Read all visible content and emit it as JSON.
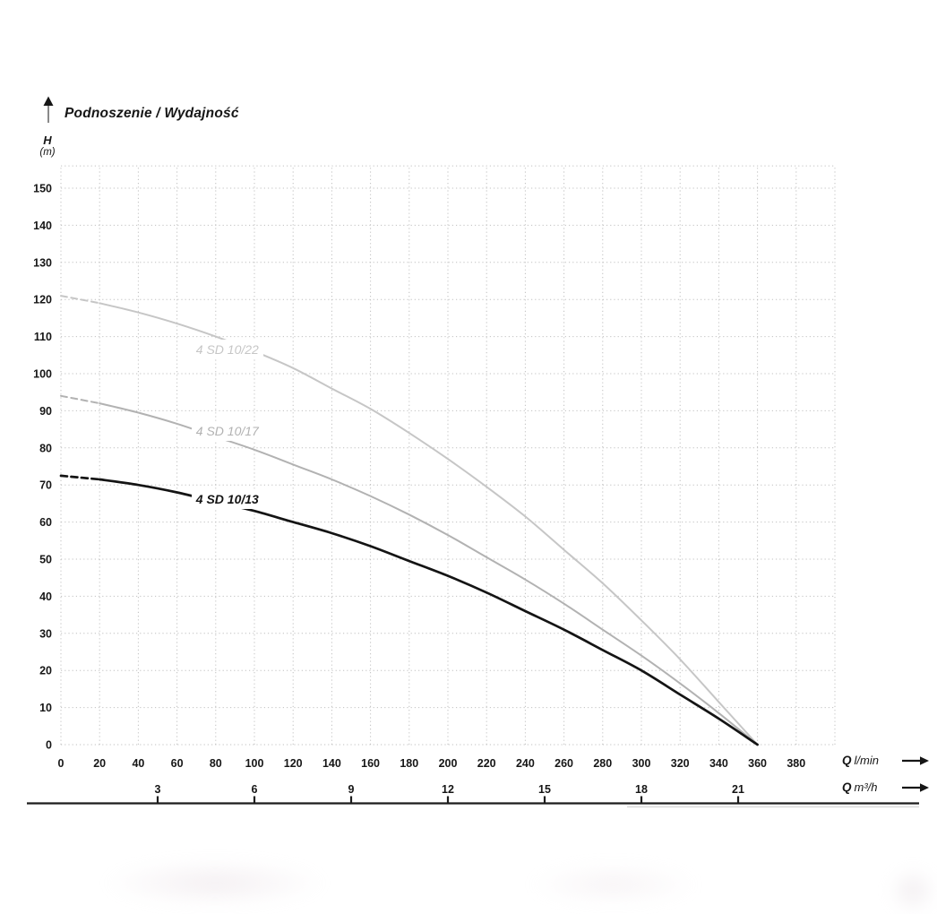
{
  "title": "Podnoszenie / Wydajność",
  "y_axis": {
    "symbol": "H",
    "unit": "(m)"
  },
  "x_axis_primary": {
    "symbol": "Q",
    "unit": "l/min"
  },
  "x_axis_secondary": {
    "symbol": "Q",
    "unit": "m³/h"
  },
  "chart_data": {
    "type": "line",
    "title": "Podnoszenie / Wydajność",
    "ylabel": "H (m)",
    "xlabel_primary": "Q l/min",
    "xlabel_secondary": "Q m³/h",
    "grid": "dotted",
    "legend_position": "on-curve-labels",
    "xlim_lmin": [
      0,
      400
    ],
    "ylim_m": [
      0,
      156
    ],
    "y_ticks_m": [
      0,
      10,
      20,
      30,
      40,
      50,
      60,
      70,
      80,
      90,
      100,
      110,
      120,
      130,
      140,
      150
    ],
    "x_ticks_lmin": [
      0,
      20,
      40,
      60,
      80,
      100,
      120,
      140,
      160,
      180,
      200,
      220,
      240,
      260,
      280,
      300,
      320,
      340,
      360,
      380
    ],
    "x_ticks_m3h": [
      3,
      6,
      9,
      12,
      15,
      18,
      21
    ],
    "lmin_per_m3h": 16.667,
    "series": [
      {
        "name": "4 SD 10/22",
        "color": "#c6c6c6",
        "dashed_until_lmin": 20,
        "points_lmin_m": [
          [
            0,
            121
          ],
          [
            20,
            119
          ],
          [
            40,
            116.5
          ],
          [
            60,
            113.5
          ],
          [
            80,
            110
          ],
          [
            100,
            106
          ],
          [
            120,
            101.5
          ],
          [
            140,
            96
          ],
          [
            160,
            90.5
          ],
          [
            180,
            84
          ],
          [
            200,
            77
          ],
          [
            220,
            69.5
          ],
          [
            240,
            61.5
          ],
          [
            260,
            52.5
          ],
          [
            280,
            43.5
          ],
          [
            300,
            33.5
          ],
          [
            320,
            23
          ],
          [
            340,
            11.5
          ],
          [
            360,
            0
          ]
        ],
        "label": {
          "text": "4 SD 10/22",
          "q_lmin": 67.5,
          "h_m": 106.5
        }
      },
      {
        "name": "4 SD 10/17",
        "color": "#b2b2b2",
        "dashed_until_lmin": 20,
        "points_lmin_m": [
          [
            0,
            94
          ],
          [
            20,
            92
          ],
          [
            40,
            89.5
          ],
          [
            60,
            86.5
          ],
          [
            80,
            83
          ],
          [
            100,
            79.5
          ],
          [
            120,
            75.5
          ],
          [
            140,
            71.5
          ],
          [
            160,
            67
          ],
          [
            180,
            62
          ],
          [
            200,
            56.5
          ],
          [
            220,
            50.5
          ],
          [
            240,
            44.5
          ],
          [
            260,
            38
          ],
          [
            280,
            31
          ],
          [
            300,
            24
          ],
          [
            320,
            16.5
          ],
          [
            340,
            8.5
          ],
          [
            360,
            0
          ]
        ],
        "label": {
          "text": "4 SD 10/17",
          "q_lmin": 67.5,
          "h_m": 84.6
        }
      },
      {
        "name": "4 SD 10/13",
        "color": "#141414",
        "dashed_until_lmin": 20,
        "points_lmin_m": [
          [
            0,
            72.5
          ],
          [
            20,
            71.5
          ],
          [
            40,
            70
          ],
          [
            60,
            68
          ],
          [
            80,
            65.5
          ],
          [
            100,
            63
          ],
          [
            120,
            60
          ],
          [
            140,
            57
          ],
          [
            160,
            53.5
          ],
          [
            180,
            49.5
          ],
          [
            200,
            45.5
          ],
          [
            220,
            41
          ],
          [
            240,
            36
          ],
          [
            260,
            31
          ],
          [
            280,
            25.5
          ],
          [
            300,
            20
          ],
          [
            320,
            13.5
          ],
          [
            340,
            7
          ],
          [
            360,
            0
          ]
        ],
        "label": {
          "text": "4 SD 10/13",
          "q_lmin": 67.5,
          "h_m": 66.2
        }
      }
    ]
  }
}
